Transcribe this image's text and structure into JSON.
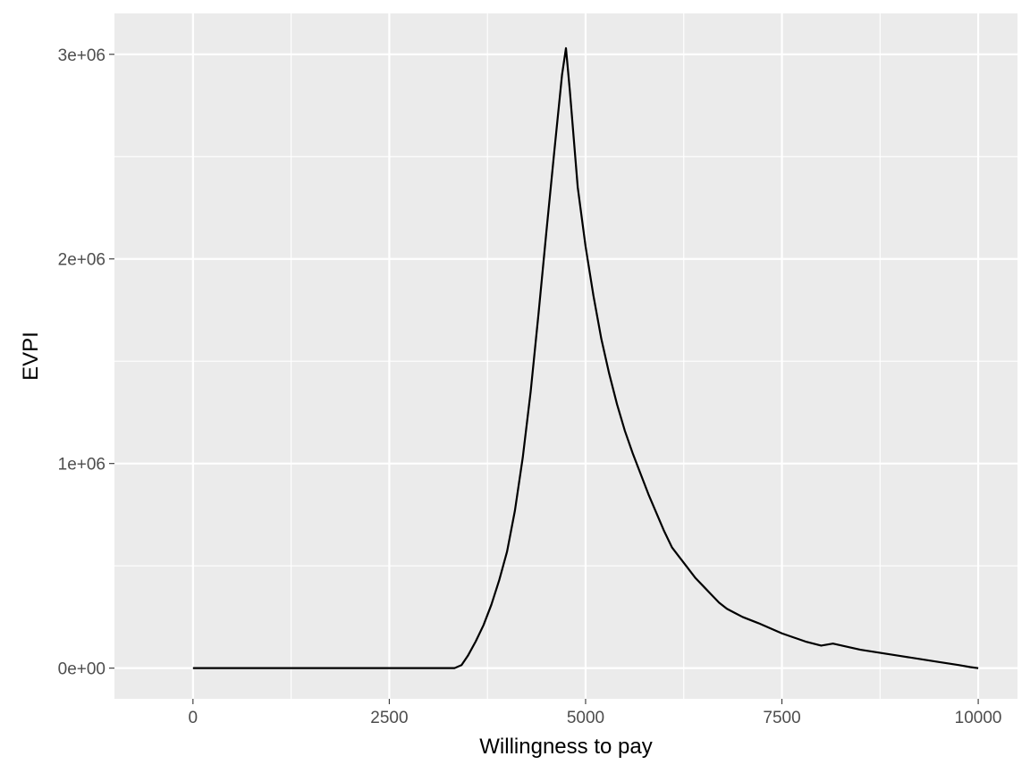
{
  "chart_data": {
    "type": "line",
    "title": "",
    "xlabel": "Willingness to pay",
    "ylabel": "EVPI",
    "xlim": [
      -1000,
      10500
    ],
    "ylim": [
      -150000,
      3200000
    ],
    "x_ticks": [
      0,
      2500,
      5000,
      7500,
      10000
    ],
    "x_tick_labels": [
      "0",
      "2500",
      "5000",
      "7500",
      "10000"
    ],
    "y_ticks": [
      0,
      1000000,
      2000000,
      3000000
    ],
    "y_tick_labels": [
      "0e+00",
      "1e+06",
      "2e+06",
      "3e+06"
    ],
    "y_minor_ticks": [
      500000,
      1500000,
      2500000
    ],
    "x_minor_ticks": [
      1250,
      3750,
      6250,
      8750
    ],
    "grid": true,
    "legend": "none",
    "colors": {
      "panel": "#ebebeb",
      "grid": "#ffffff",
      "line": "#000000"
    },
    "series": [
      {
        "x": [
          0,
          1000,
          2000,
          3000,
          3330,
          3420,
          3500,
          3600,
          3700,
          3800,
          3900,
          4000,
          4100,
          4200,
          4300,
          4400,
          4500,
          4600,
          4700,
          4750,
          4800,
          4900,
          5000,
          5100,
          5200,
          5300,
          5400,
          5500,
          5600,
          5700,
          5800,
          5900,
          6000,
          6100,
          6200,
          6300,
          6400,
          6500,
          6600,
          6700,
          6800,
          6900,
          7000,
          7200,
          7500,
          7800,
          8000,
          8150,
          8500,
          9000,
          9500,
          9750,
          9900,
          10000
        ],
        "y": [
          0,
          0,
          0,
          0,
          0,
          15000,
          60000,
          130000,
          210000,
          310000,
          430000,
          570000,
          770000,
          1030000,
          1350000,
          1730000,
          2130000,
          2520000,
          2900000,
          3030000,
          2820000,
          2350000,
          2060000,
          1820000,
          1610000,
          1440000,
          1290000,
          1160000,
          1050000,
          950000,
          850000,
          760000,
          670000,
          590000,
          540000,
          490000,
          440000,
          400000,
          360000,
          320000,
          290000,
          270000,
          250000,
          220000,
          170000,
          130000,
          110000,
          120000,
          90000,
          60000,
          30000,
          15000,
          5000,
          0
        ]
      }
    ]
  }
}
